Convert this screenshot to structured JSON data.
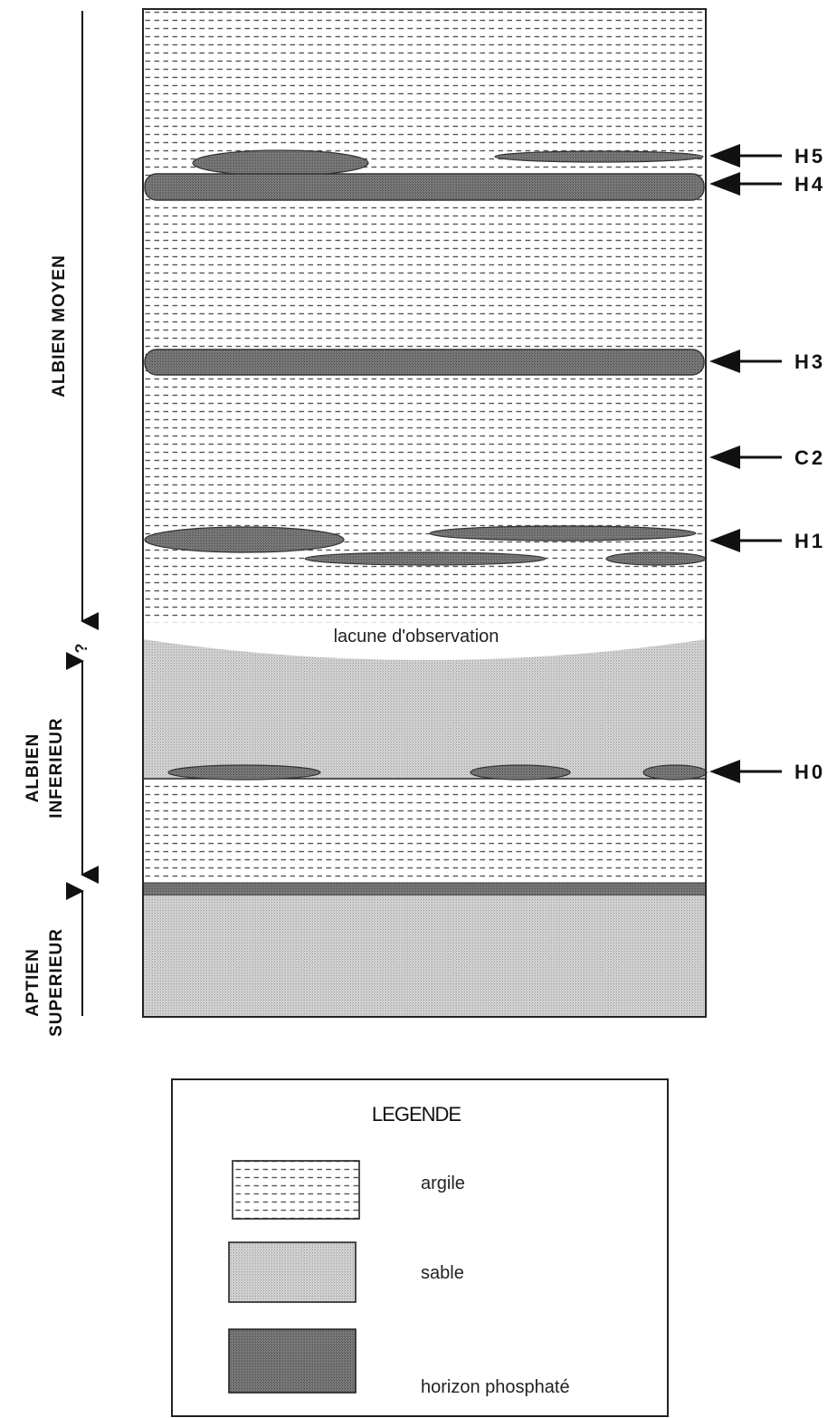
{
  "stages": {
    "albien_moyen": "ALBIEN MOYEN",
    "albien_inferieur_line1": "ALBIEN",
    "albien_inferieur_line2": "INFERIEUR",
    "aptien_superieur_line1": "APTIEN",
    "aptien_superieur_line2": "SUPERIEUR",
    "uncertain_boundary": "?"
  },
  "gap_label": "lacune d'observation",
  "horizons": [
    {
      "id": "h5",
      "label": "H5"
    },
    {
      "id": "h4",
      "label": "H4"
    },
    {
      "id": "h3",
      "label": "H3"
    },
    {
      "id": "c2",
      "label": "C2"
    },
    {
      "id": "h1",
      "label": "H1"
    },
    {
      "id": "h0",
      "label": "H0"
    }
  ],
  "legend": {
    "title": "LEGENDE",
    "items": [
      {
        "id": "argile",
        "label": "argile",
        "pattern": "clay-dashes"
      },
      {
        "id": "sable",
        "label": "sable",
        "pattern": "sand-stipple"
      },
      {
        "id": "phosphate",
        "label": "horizon phosphaté",
        "pattern": "phosphate-dark"
      }
    ]
  },
  "colors": {
    "clay_dash": "#4a4a4a",
    "sand": "#cfcfcf",
    "phosphate": "#6e6e6e",
    "ink": "#111111"
  }
}
